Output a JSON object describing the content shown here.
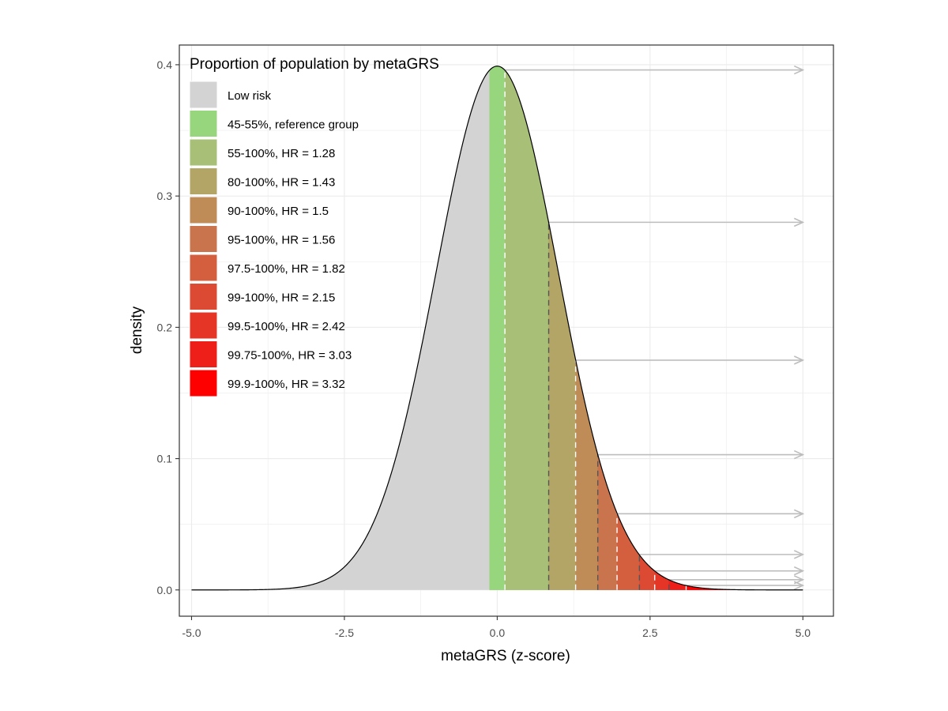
{
  "chart_data": {
    "type": "area",
    "xlabel": "metaGRS (z-score)",
    "ylabel": "density",
    "xlim": [
      -5.2,
      5.5
    ],
    "ylim": [
      -0.02,
      0.415
    ],
    "x_ticks": [
      -5.0,
      -2.5,
      0.0,
      2.5,
      5.0
    ],
    "x_tick_labels": [
      "-5.0",
      "-2.5",
      "0.0",
      "2.5",
      "5.0"
    ],
    "y_ticks": [
      0.0,
      0.1,
      0.2,
      0.3,
      0.4
    ],
    "y_tick_labels": [
      "0.0",
      "0.1",
      "0.2",
      "0.3",
      "0.4"
    ],
    "grid": true,
    "distribution": "standard normal density",
    "curve_peak": {
      "x": 0.0,
      "y": 0.399
    },
    "legend": {
      "title": "Proportion of population by metaGRS",
      "placement": "top-left",
      "entries": [
        {
          "label": "Low risk",
          "color": "#d3d3d3"
        },
        {
          "label": "45-55%, reference group",
          "color": "#98d67e"
        },
        {
          "label": "55-100%, HR = 1.28",
          "color": "#a8bf78"
        },
        {
          "label": "80-100%, HR = 1.43",
          "color": "#b3a565"
        },
        {
          "label": "90-100%, HR = 1.5",
          "color": "#bf8c58"
        },
        {
          "label": "95-100%, HR = 1.56",
          "color": "#c9744c"
        },
        {
          "label": "97.5-100%, HR = 1.82",
          "color": "#d35f3f"
        },
        {
          "label": "99-100%, HR = 2.15",
          "color": "#dc4a33"
        },
        {
          "label": "99.5-100%, HR = 2.42",
          "color": "#e53527"
        },
        {
          "label": "99.75-100%, HR = 3.03",
          "color": "#ee1f19"
        },
        {
          "label": "99.9-100%, HR = 3.32",
          "color": "#ff0000"
        }
      ]
    },
    "bands": [
      {
        "group": "45-55%, reference group",
        "x_start": -0.126,
        "x_end": 0.126,
        "color": "#98d67e"
      },
      {
        "group": "55-100%, HR = 1.28",
        "x_start": 0.126,
        "x_end": 0.842,
        "color": "#a8bf78"
      },
      {
        "group": "80-100%, HR = 1.43",
        "x_start": 0.842,
        "x_end": 1.282,
        "color": "#b3a565"
      },
      {
        "group": "90-100%, HR = 1.5",
        "x_start": 1.282,
        "x_end": 1.645,
        "color": "#bf8c58"
      },
      {
        "group": "95-100%, HR = 1.56",
        "x_start": 1.645,
        "x_end": 1.96,
        "color": "#c9744c"
      },
      {
        "group": "97.5-100%, HR = 1.82",
        "x_start": 1.96,
        "x_end": 2.326,
        "color": "#d35f3f"
      },
      {
        "group": "99-100%, HR = 2.15",
        "x_start": 2.326,
        "x_end": 2.576,
        "color": "#dc4a33"
      },
      {
        "group": "99.5-100%, HR = 2.42",
        "x_start": 2.576,
        "x_end": 2.807,
        "color": "#e53527"
      },
      {
        "group": "99.75-100%, HR = 3.03",
        "x_start": 2.807,
        "x_end": 3.09,
        "color": "#ee1f19"
      },
      {
        "group": "99.9-100%, HR = 3.32",
        "x_start": 3.09,
        "x_end": 5.0,
        "color": "#ff0000"
      }
    ],
    "threshold_lines": [
      0.126,
      0.842,
      1.282,
      1.645,
      1.96,
      2.326,
      2.576,
      2.807,
      3.09
    ],
    "arrows": [
      {
        "from_x": 0.126,
        "y": 0.396,
        "to_x": 5.0
      },
      {
        "from_x": 0.842,
        "y": 0.28,
        "to_x": 5.0
      },
      {
        "from_x": 1.282,
        "y": 0.175,
        "to_x": 5.0
      },
      {
        "from_x": 1.645,
        "y": 0.103,
        "to_x": 5.0
      },
      {
        "from_x": 1.96,
        "y": 0.058,
        "to_x": 5.0
      },
      {
        "from_x": 2.326,
        "y": 0.027,
        "to_x": 5.0
      },
      {
        "from_x": 2.576,
        "y": 0.0145,
        "to_x": 5.0
      },
      {
        "from_x": 2.807,
        "y": 0.0078,
        "to_x": 5.0
      },
      {
        "from_x": 3.09,
        "y": 0.0034,
        "to_x": 5.0
      }
    ],
    "colors": {
      "curve": "#000000",
      "arrow": "#bdbdbd",
      "panel_border": "#333333",
      "grid": "#ebebeb"
    }
  }
}
